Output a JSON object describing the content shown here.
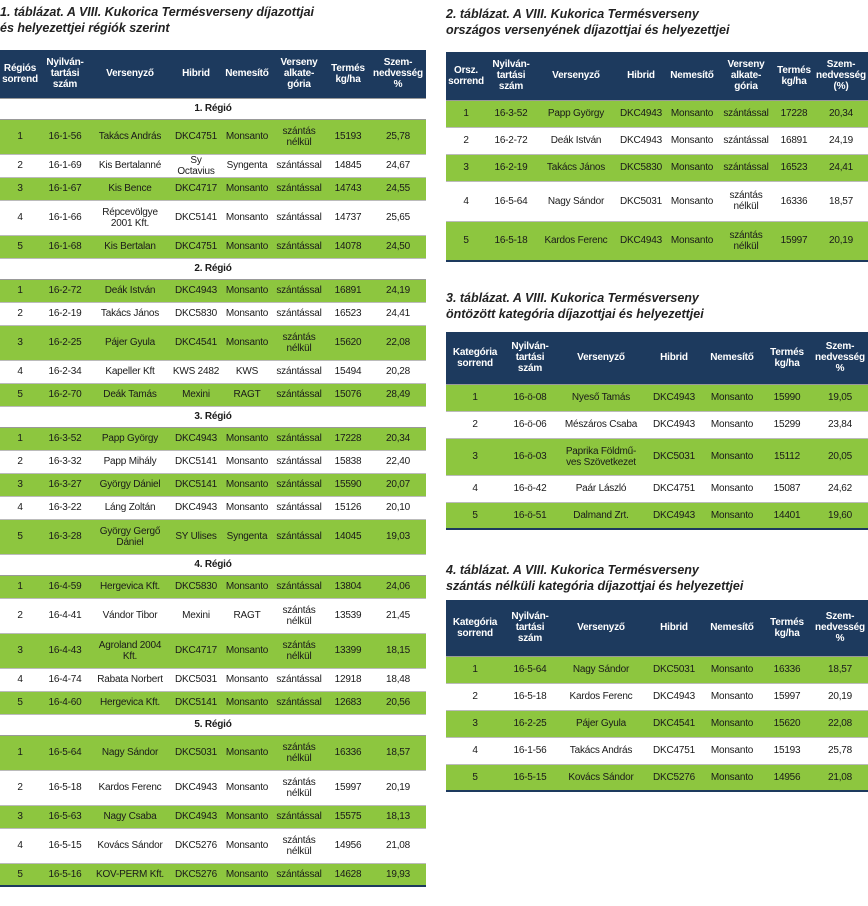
{
  "tables": [
    {
      "title": [
        "1. táblázat. A VIII. Kukorica Termésverseny díjazottjai",
        "és helyezettjei régiók szerint"
      ],
      "headers": [
        [
          "Régiós",
          "sorrend"
        ],
        [
          "Nyilván-",
          "tartási",
          "szám"
        ],
        [
          "Versenyző"
        ],
        [
          "Hibrid"
        ],
        [
          "Nemesítő"
        ],
        [
          "Verseny",
          "alkate-",
          "gória"
        ],
        [
          "Termés",
          "kg/ha"
        ],
        [
          "Szem-",
          "nedvesség",
          "%"
        ]
      ],
      "groups": [
        {
          "label": "1. Régió",
          "rows": [
            [
              "1",
              "16-1-56",
              "Takács András",
              "DKC4751",
              "Monsanto",
              [
                "szántás",
                "nélkül"
              ],
              "15193",
              "25,78"
            ],
            [
              "2",
              "16-1-69",
              "Kis Bertalanné",
              "Sy Octavius",
              "Syngenta",
              "szántással",
              "14845",
              "24,67"
            ],
            [
              "3",
              "16-1-67",
              "Kis Bence",
              "DKC4717",
              "Monsanto",
              "szántással",
              "14743",
              "24,55"
            ],
            [
              "4",
              "16-1-66",
              [
                "Répcevölgye",
                "2001 Kft."
              ],
              "DKC5141",
              "Monsanto",
              "szántással",
              "14737",
              "25,65"
            ],
            [
              "5",
              "16-1-68",
              "Kis Bertalan",
              "DKC4751",
              "Monsanto",
              "szántással",
              "14078",
              "24,50"
            ]
          ]
        },
        {
          "label": "2. Régió",
          "rows": [
            [
              "1",
              "16-2-72",
              "Deák István",
              "DKC4943",
              "Monsanto",
              "szántással",
              "16891",
              "24,19"
            ],
            [
              "2",
              "16-2-19",
              "Takács János",
              "DKC5830",
              "Monsanto",
              "szántással",
              "16523",
              "24,41"
            ],
            [
              "3",
              "16-2-25",
              "Pájer Gyula",
              "DKC4541",
              "Monsanto",
              [
                "szántás",
                "nélkül"
              ],
              "15620",
              "22,08"
            ],
            [
              "4",
              "16-2-34",
              "Kapeller Kft",
              "KWS 2482",
              "KWS",
              "szántással",
              "15494",
              "20,28"
            ],
            [
              "5",
              "16-2-70",
              "Deák Tamás",
              "Mexini",
              "RAGT",
              "szántással",
              "15076",
              "28,49"
            ]
          ]
        },
        {
          "label": "3. Régió",
          "rows": [
            [
              "1",
              "16-3-52",
              "Papp György",
              "DKC4943",
              "Monsanto",
              "szántással",
              "17228",
              "20,34"
            ],
            [
              "2",
              "16-3-32",
              "Papp Mihály",
              "DKC5141",
              "Monsanto",
              "szántással",
              "15838",
              "22,40"
            ],
            [
              "3",
              "16-3-27",
              "György Dániel",
              "DKC5141",
              "Monsanto",
              "szántással",
              "15590",
              "20,07"
            ],
            [
              "4",
              "16-3-22",
              "Láng Zoltán",
              "DKC4943",
              "Monsanto",
              "szántással",
              "15126",
              "20,10"
            ],
            [
              "5",
              "16-3-28",
              [
                "György Gergő",
                "Dániel"
              ],
              "SY Ulises",
              "Syngenta",
              "szántással",
              "14045",
              "19,03"
            ]
          ]
        },
        {
          "label": "4. Régió",
          "rows": [
            [
              "1",
              "16-4-59",
              "Hergevica Kft.",
              "DKC5830",
              "Monsanto",
              "szántással",
              "13804",
              "24,06"
            ],
            [
              "2",
              "16-4-41",
              "Vándor Tibor",
              "Mexini",
              "RAGT",
              [
                "szántás",
                "nélkül"
              ],
              "13539",
              "21,45"
            ],
            [
              "3",
              "16-4-43",
              [
                "Agroland 2004",
                "Kft."
              ],
              "DKC4717",
              "Monsanto",
              [
                "szántás",
                "nélkül"
              ],
              "13399",
              "18,15"
            ],
            [
              "4",
              "16-4-74",
              "Rabata Norbert",
              "DKC5031",
              "Monsanto",
              "szántással",
              "12918",
              "18,48"
            ],
            [
              "5",
              "16-4-60",
              "Hergevica Kft.",
              "DKC5141",
              "Monsanto",
              "szántással",
              "12683",
              "20,56"
            ]
          ]
        },
        {
          "label": "5. Régió",
          "rows": [
            [
              "1",
              "16-5-64",
              "Nagy Sándor",
              "DKC5031",
              "Monsanto",
              [
                "szántás",
                "nélkül"
              ],
              "16336",
              "18,57"
            ],
            [
              "2",
              "16-5-18",
              "Kardos Ferenc",
              "DKC4943",
              "Monsanto",
              [
                "szántás",
                "nélkül"
              ],
              "15997",
              "20,19"
            ],
            [
              "3",
              "16-5-63",
              "Nagy Csaba",
              "DKC4943",
              "Monsanto",
              "szántással",
              "15575",
              "18,13"
            ],
            [
              "4",
              "16-5-15",
              "Kovács Sándor",
              "DKC5276",
              "Monsanto",
              [
                "szántás",
                "nélkül"
              ],
              "14956",
              "21,08"
            ],
            [
              "5",
              "16-5-16",
              "KOV-PERM Kft.",
              "DKC5276",
              "Monsanto",
              "szántással",
              "14628",
              "19,93"
            ]
          ]
        }
      ]
    },
    {
      "title": [
        "2. táblázat. A VIII. Kukorica Termésverseny",
        "országos versenyének díjazottjai és helyezettjei"
      ],
      "headers": [
        [
          "Orsz.",
          "sorrend"
        ],
        [
          "Nyilván-",
          "tartási",
          "szám"
        ],
        [
          "Versenyző"
        ],
        [
          "Hibrid"
        ],
        [
          "Nemesítő"
        ],
        [
          "Verseny",
          "alkate-",
          "gória"
        ],
        [
          "Termés",
          "kg/ha"
        ],
        [
          "Szem-",
          "nedvesség",
          "(%)"
        ]
      ],
      "groups": [
        {
          "rows": [
            [
              "1",
              "16-3-52",
              "Papp György",
              "DKC4943",
              "Monsanto",
              "szántással",
              "17228",
              "20,34"
            ],
            [
              "2",
              "16-2-72",
              "Deák István",
              "DKC4943",
              "Monsanto",
              "szántással",
              "16891",
              "24,19"
            ],
            [
              "3",
              "16-2-19",
              "Takács János",
              "DKC5830",
              "Monsanto",
              "szántással",
              "16523",
              "24,41"
            ],
            [
              "4",
              "16-5-64",
              "Nagy Sándor",
              "DKC5031",
              "Monsanto",
              [
                "szántás",
                "nélkül"
              ],
              "16336",
              "18,57"
            ],
            [
              "5",
              "16-5-18",
              "Kardos Ferenc",
              "DKC4943",
              "Monsanto",
              [
                "szántás",
                "nélkül"
              ],
              "15997",
              "20,19"
            ]
          ]
        }
      ]
    },
    {
      "title": [
        "3. táblázat. A VIII. Kukorica Termésverseny",
        "öntözött kategória díjazottjai és helyezettjei"
      ],
      "headers": [
        [
          "Kategória",
          "sorrend"
        ],
        [
          "Nyilván-",
          "tartási",
          "szám"
        ],
        [
          "Versenyző"
        ],
        [
          "Hibrid"
        ],
        [
          "Nemesítő"
        ],
        [
          "Termés",
          "kg/ha"
        ],
        [
          "Szem-",
          "nedvesség",
          "%"
        ]
      ],
      "groups": [
        {
          "rows": [
            [
              "1",
              "16-ö-08",
              "Nyeső Tamás",
              "DKC4943",
              "Monsanto",
              "15990",
              "19,05"
            ],
            [
              "2",
              "16-ö-06",
              "Mészáros Csaba",
              "DKC4943",
              "Monsanto",
              "15299",
              "23,84"
            ],
            [
              "3",
              "16-ö-03",
              [
                "Paprika Földmű-",
                "ves Szövetkezet"
              ],
              "DKC5031",
              "Monsanto",
              "15112",
              "20,05"
            ],
            [
              "4",
              "16-ö-42",
              "Paár László",
              "DKC4751",
              "Monsanto",
              "15087",
              "24,62"
            ],
            [
              "5",
              "16-ö-51",
              "Dalmand Zrt.",
              "DKC4943",
              "Monsanto",
              "14401",
              "19,60"
            ]
          ]
        }
      ]
    },
    {
      "title": [
        "4. táblázat. A VIII. Kukorica Termésverseny",
        "szántás nélküli kategória díjazottjai és helyezettjei"
      ],
      "headers": [
        [
          "Kategória",
          "sorrend"
        ],
        [
          "Nyilván-",
          "tartási",
          "szám"
        ],
        [
          "Versenyző"
        ],
        [
          "Hibrid"
        ],
        [
          "Nemesítő"
        ],
        [
          "Termés",
          "kg/ha"
        ],
        [
          "Szem-",
          "nedvesség",
          "%"
        ]
      ],
      "groups": [
        {
          "rows": [
            [
              "1",
              "16-5-64",
              "Nagy Sándor",
              "DKC5031",
              "Monsanto",
              "16336",
              "18,57"
            ],
            [
              "2",
              "16-5-18",
              "Kardos Ferenc",
              "DKC4943",
              "Monsanto",
              "15997",
              "20,19"
            ],
            [
              "3",
              "16-2-25",
              "Pájer Gyula",
              "DKC4541",
              "Monsanto",
              "15620",
              "22,08"
            ],
            [
              "4",
              "16-1-56",
              "Takács András",
              "DKC4751",
              "Monsanto",
              "15193",
              "25,78"
            ],
            [
              "5",
              "16-5-15",
              "Kovács Sándor",
              "DKC5276",
              "Monsanto",
              "14956",
              "21,08"
            ]
          ]
        }
      ]
    }
  ]
}
